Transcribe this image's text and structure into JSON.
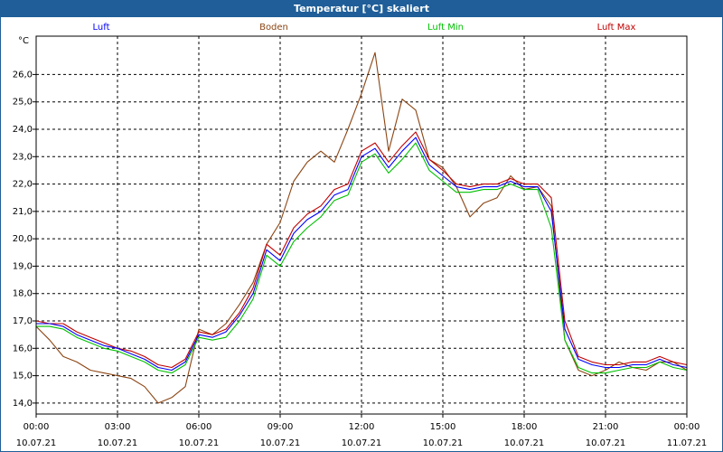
{
  "window": {
    "title": "Temperatur [°C] skaliert"
  },
  "chart_data": {
    "type": "line",
    "title": "Temperatur [°C] skaliert",
    "ylabel": "°C",
    "xlabel": "",
    "ylim": [
      13.6,
      27.4
    ],
    "y_ticks": [
      14.0,
      15.0,
      16.0,
      17.0,
      18.0,
      19.0,
      20.0,
      21.0,
      22.0,
      23.0,
      24.0,
      25.0,
      26.0
    ],
    "y_tick_labels": [
      "14,0",
      "15,0",
      "16,0",
      "17,0",
      "18,0",
      "19,0",
      "20,0",
      "21,0",
      "22,0",
      "23,0",
      "24,0",
      "25,0",
      "26,0"
    ],
    "x_range_hours": [
      0,
      24
    ],
    "x_ticks": [
      {
        "h": 0,
        "time": "00:00",
        "date": "10.07.21"
      },
      {
        "h": 3,
        "time": "03:00",
        "date": "10.07.21"
      },
      {
        "h": 6,
        "time": "06:00",
        "date": "10.07.21"
      },
      {
        "h": 9,
        "time": "09:00",
        "date": "10.07.21"
      },
      {
        "h": 12,
        "time": "12:00",
        "date": "10.07.21"
      },
      {
        "h": 15,
        "time": "15:00",
        "date": "10.07.21"
      },
      {
        "h": 18,
        "time": "18:00",
        "date": "10.07.21"
      },
      {
        "h": 21,
        "time": "21:00",
        "date": "10.07.21"
      },
      {
        "h": 24,
        "time": "00:00",
        "date": "11.07.21"
      }
    ],
    "grid": true,
    "legend_position": "top",
    "series": [
      {
        "name": "Luft",
        "color": "#0000ff",
        "x": [
          0,
          0.5,
          1,
          1.5,
          2,
          2.5,
          3,
          3.5,
          4,
          4.5,
          5,
          5.5,
          6,
          6.5,
          7,
          7.5,
          8,
          8.5,
          9,
          9.5,
          10,
          10.5,
          11,
          11.5,
          12,
          12.5,
          13,
          13.5,
          14,
          14.5,
          15,
          15.5,
          16,
          16.5,
          17,
          17.5,
          18,
          18.5,
          19,
          19.5,
          20,
          20.5,
          21,
          21.5,
          22,
          22.5,
          23,
          23.5,
          24
        ],
        "values": [
          16.9,
          16.9,
          16.8,
          16.5,
          16.3,
          16.1,
          16.0,
          15.8,
          15.6,
          15.3,
          15.2,
          15.5,
          16.5,
          16.4,
          16.6,
          17.2,
          18.0,
          19.6,
          19.2,
          20.2,
          20.7,
          21.0,
          21.6,
          21.8,
          23.0,
          23.3,
          22.6,
          23.2,
          23.7,
          22.7,
          22.3,
          21.9,
          21.8,
          21.9,
          21.9,
          22.1,
          21.9,
          21.9,
          21.0,
          16.7,
          15.6,
          15.4,
          15.3,
          15.3,
          15.4,
          15.4,
          15.6,
          15.4,
          15.3
        ]
      },
      {
        "name": "Boden",
        "color": "#8b4513",
        "x": [
          0,
          0.5,
          1,
          1.5,
          2,
          2.5,
          3,
          3.5,
          4,
          4.5,
          5,
          5.5,
          6,
          6.5,
          7,
          7.5,
          8,
          8.5,
          9,
          9.5,
          10,
          10.5,
          11,
          11.5,
          12,
          12.5,
          13,
          13.5,
          14,
          14.5,
          15,
          15.5,
          16,
          16.5,
          17,
          17.5,
          18,
          18.5,
          19,
          19.5,
          20,
          20.5,
          21,
          21.5,
          22,
          22.5,
          23,
          23.5,
          24
        ],
        "values": [
          16.8,
          16.3,
          15.7,
          15.5,
          15.2,
          15.1,
          15.0,
          14.9,
          14.6,
          14.0,
          14.2,
          14.6,
          16.7,
          16.5,
          16.9,
          17.6,
          18.4,
          19.8,
          20.6,
          22.1,
          22.8,
          23.2,
          22.8,
          24.0,
          25.3,
          26.8,
          23.2,
          25.1,
          24.7,
          22.9,
          22.6,
          21.9,
          20.8,
          21.3,
          21.5,
          22.3,
          21.8,
          21.9,
          21.2,
          16.3,
          15.2,
          15.0,
          15.2,
          15.5,
          15.3,
          15.2,
          15.5,
          15.5,
          15.2
        ]
      },
      {
        "name": "Luft Min",
        "color": "#00c000",
        "x": [
          0,
          0.5,
          1,
          1.5,
          2,
          2.5,
          3,
          3.5,
          4,
          4.5,
          5,
          5.5,
          6,
          6.5,
          7,
          7.5,
          8,
          8.5,
          9,
          9.5,
          10,
          10.5,
          11,
          11.5,
          12,
          12.5,
          13,
          13.5,
          14,
          14.5,
          15,
          15.5,
          16,
          16.5,
          17,
          17.5,
          18,
          18.5,
          19,
          19.5,
          20,
          20.5,
          21,
          21.5,
          22,
          22.5,
          23,
          23.5,
          24
        ],
        "values": [
          16.8,
          16.8,
          16.7,
          16.4,
          16.2,
          16.0,
          15.9,
          15.7,
          15.5,
          15.2,
          15.1,
          15.4,
          16.4,
          16.3,
          16.4,
          17.0,
          17.8,
          19.4,
          19.0,
          19.9,
          20.4,
          20.8,
          21.4,
          21.6,
          22.8,
          23.1,
          22.4,
          22.9,
          23.5,
          22.5,
          22.1,
          21.7,
          21.7,
          21.8,
          21.8,
          22.0,
          21.8,
          21.8,
          20.4,
          16.3,
          15.3,
          15.1,
          15.1,
          15.2,
          15.3,
          15.3,
          15.5,
          15.3,
          15.2
        ]
      },
      {
        "name": "Luft Max",
        "color": "#c00000",
        "x": [
          0,
          0.5,
          1,
          1.5,
          2,
          2.5,
          3,
          3.5,
          4,
          4.5,
          5,
          5.5,
          6,
          6.5,
          7,
          7.5,
          8,
          8.5,
          9,
          9.5,
          10,
          10.5,
          11,
          11.5,
          12,
          12.5,
          13,
          13.5,
          14,
          14.5,
          15,
          15.5,
          16,
          16.5,
          17,
          17.5,
          18,
          18.5,
          19,
          19.5,
          20,
          20.5,
          21,
          21.5,
          22,
          22.5,
          23,
          23.5,
          24
        ],
        "values": [
          17.0,
          16.9,
          16.9,
          16.6,
          16.4,
          16.2,
          16.0,
          15.9,
          15.7,
          15.4,
          15.3,
          15.6,
          16.6,
          16.5,
          16.7,
          17.3,
          18.2,
          19.8,
          19.4,
          20.4,
          20.9,
          21.2,
          21.8,
          22.0,
          23.2,
          23.5,
          22.8,
          23.4,
          23.9,
          22.9,
          22.5,
          22.0,
          21.9,
          22.0,
          22.0,
          22.2,
          22.0,
          22.0,
          21.5,
          17.0,
          15.7,
          15.5,
          15.4,
          15.4,
          15.5,
          15.5,
          15.7,
          15.5,
          15.4
        ]
      }
    ]
  }
}
